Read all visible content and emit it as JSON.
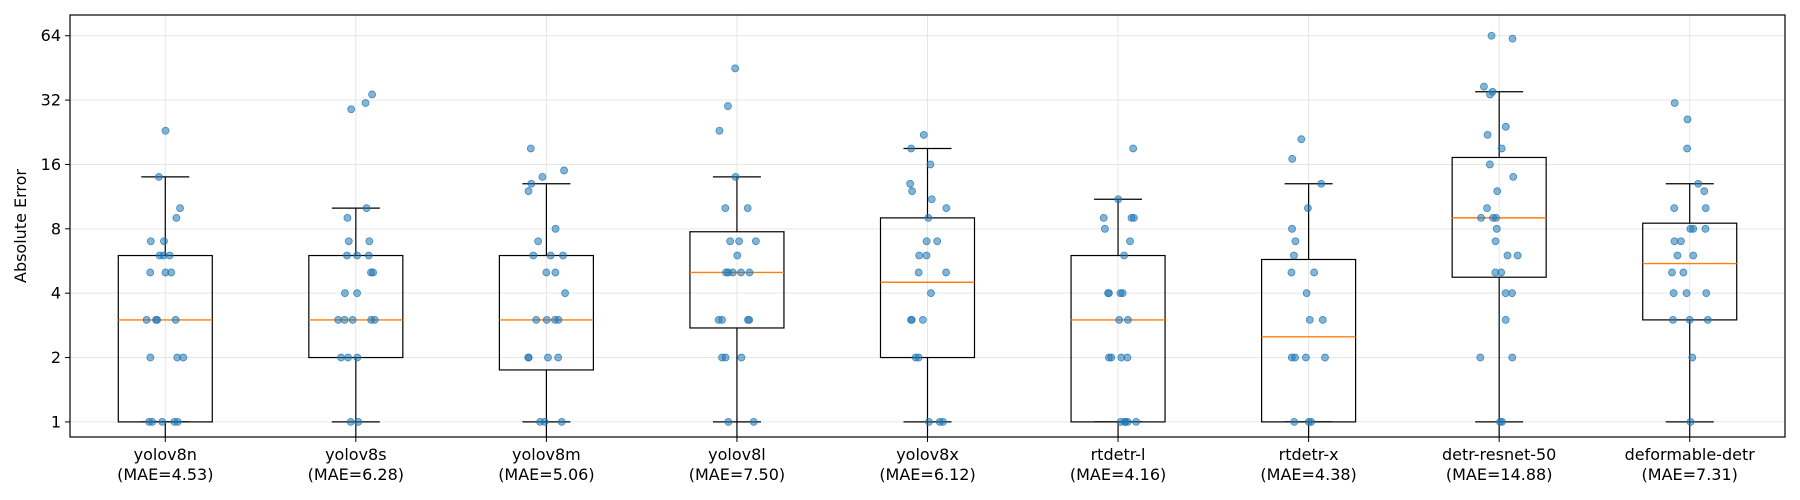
{
  "chart_data": {
    "type": "box",
    "title": "",
    "xlabel": "",
    "ylabel": "Absolute Error",
    "y_scale": "log2",
    "ylim": [
      0.85,
      80
    ],
    "yticks": [
      1,
      2,
      4,
      8,
      16,
      32,
      64
    ],
    "ytick_labels": [
      "1",
      "2",
      "4",
      "8",
      "16",
      "32",
      "64"
    ],
    "grid": true,
    "colors": {
      "box": "#000000",
      "median": "#ff7f0e",
      "points": "#1f77b4",
      "grid": "#e6e6e6"
    },
    "categories": [
      {
        "name": "yolov8n",
        "mae_label": "(MAE=4.53)",
        "stats": {
          "whislo": 1,
          "q1": 1,
          "median": 3,
          "q3": 6,
          "whishi": 14
        },
        "points": [
          1,
          1,
          1,
          1,
          1,
          2,
          2,
          2,
          3,
          3,
          3,
          3,
          5,
          5,
          5,
          6,
          6,
          6,
          7,
          7,
          9,
          10,
          14,
          23
        ]
      },
      {
        "name": "yolov8s",
        "mae_label": "(MAE=6.28)",
        "stats": {
          "whislo": 1,
          "q1": 2,
          "median": 3,
          "q3": 6,
          "whishi": 10
        },
        "points": [
          1,
          1,
          2,
          2,
          2,
          3,
          3,
          3,
          3,
          3,
          4,
          4,
          5,
          5,
          6,
          6,
          6,
          7,
          7,
          9,
          10,
          29,
          31,
          34
        ]
      },
      {
        "name": "yolov8m",
        "mae_label": "(MAE=5.06)",
        "stats": {
          "whislo": 1,
          "q1": 1.75,
          "median": 3,
          "q3": 6,
          "whishi": 13
        },
        "points": [
          1,
          1,
          1,
          2,
          2,
          2,
          2,
          3,
          3,
          3,
          3,
          4,
          5,
          5,
          6,
          6,
          6,
          7,
          8,
          12,
          13,
          14,
          15,
          19
        ]
      },
      {
        "name": "yolov8l",
        "mae_label": "(MAE=7.50)",
        "stats": {
          "whislo": 1,
          "q1": 2.75,
          "median": 5,
          "q3": 7.75,
          "whishi": 14
        },
        "points": [
          1,
          1,
          2,
          2,
          2,
          3,
          3,
          3,
          3,
          5,
          5,
          5,
          5,
          5,
          6,
          7,
          7,
          7,
          10,
          10,
          14,
          23,
          30,
          45
        ]
      },
      {
        "name": "yolov8x",
        "mae_label": "(MAE=6.12)",
        "stats": {
          "whislo": 1,
          "q1": 2,
          "median": 4.5,
          "q3": 9,
          "whishi": 19
        },
        "points": [
          1,
          1,
          1,
          2,
          2,
          3,
          3,
          3,
          4,
          5,
          5,
          6,
          6,
          7,
          7,
          9,
          10,
          11,
          12,
          13,
          16,
          19,
          22
        ]
      },
      {
        "name": "rtdetr-l",
        "mae_label": "(MAE=4.16)",
        "stats": {
          "whislo": 1,
          "q1": 1,
          "median": 3,
          "q3": 6,
          "whishi": 11
        },
        "points": [
          1,
          1,
          1,
          1,
          1,
          2,
          2,
          2,
          2,
          3,
          3,
          4,
          4,
          4,
          4,
          6,
          7,
          8,
          9,
          9,
          9,
          11,
          19
        ]
      },
      {
        "name": "rtdetr-x",
        "mae_label": "(MAE=4.38)",
        "stats": {
          "whislo": 1,
          "q1": 1,
          "median": 2.5,
          "q3": 5.75,
          "whishi": 13
        },
        "points": [
          1,
          1,
          1,
          2,
          2,
          2,
          2,
          3,
          3,
          4,
          5,
          5,
          6,
          7,
          8,
          10,
          13,
          17,
          21
        ]
      },
      {
        "name": "detr-resnet-50",
        "mae_label": "(MAE=14.88)",
        "stats": {
          "whislo": 1,
          "q1": 4.75,
          "median": 9,
          "q3": 17.25,
          "whishi": 35
        },
        "points": [
          1,
          1,
          2,
          2,
          3,
          4,
          4,
          5,
          5,
          6,
          6,
          7,
          8,
          9,
          9,
          9,
          10,
          12,
          14,
          16,
          19,
          22,
          24,
          34,
          35,
          37,
          62,
          64
        ]
      },
      {
        "name": "deformable-detr",
        "mae_label": "(MAE=7.31)",
        "stats": {
          "whislo": 1,
          "q1": 3,
          "median": 5.5,
          "q3": 8.5,
          "whishi": 13
        },
        "points": [
          1,
          2,
          3,
          3,
          3,
          4,
          4,
          4,
          5,
          5,
          6,
          6,
          7,
          7,
          8,
          8,
          8,
          10,
          10,
          12,
          13,
          19,
          26,
          31
        ]
      }
    ]
  }
}
